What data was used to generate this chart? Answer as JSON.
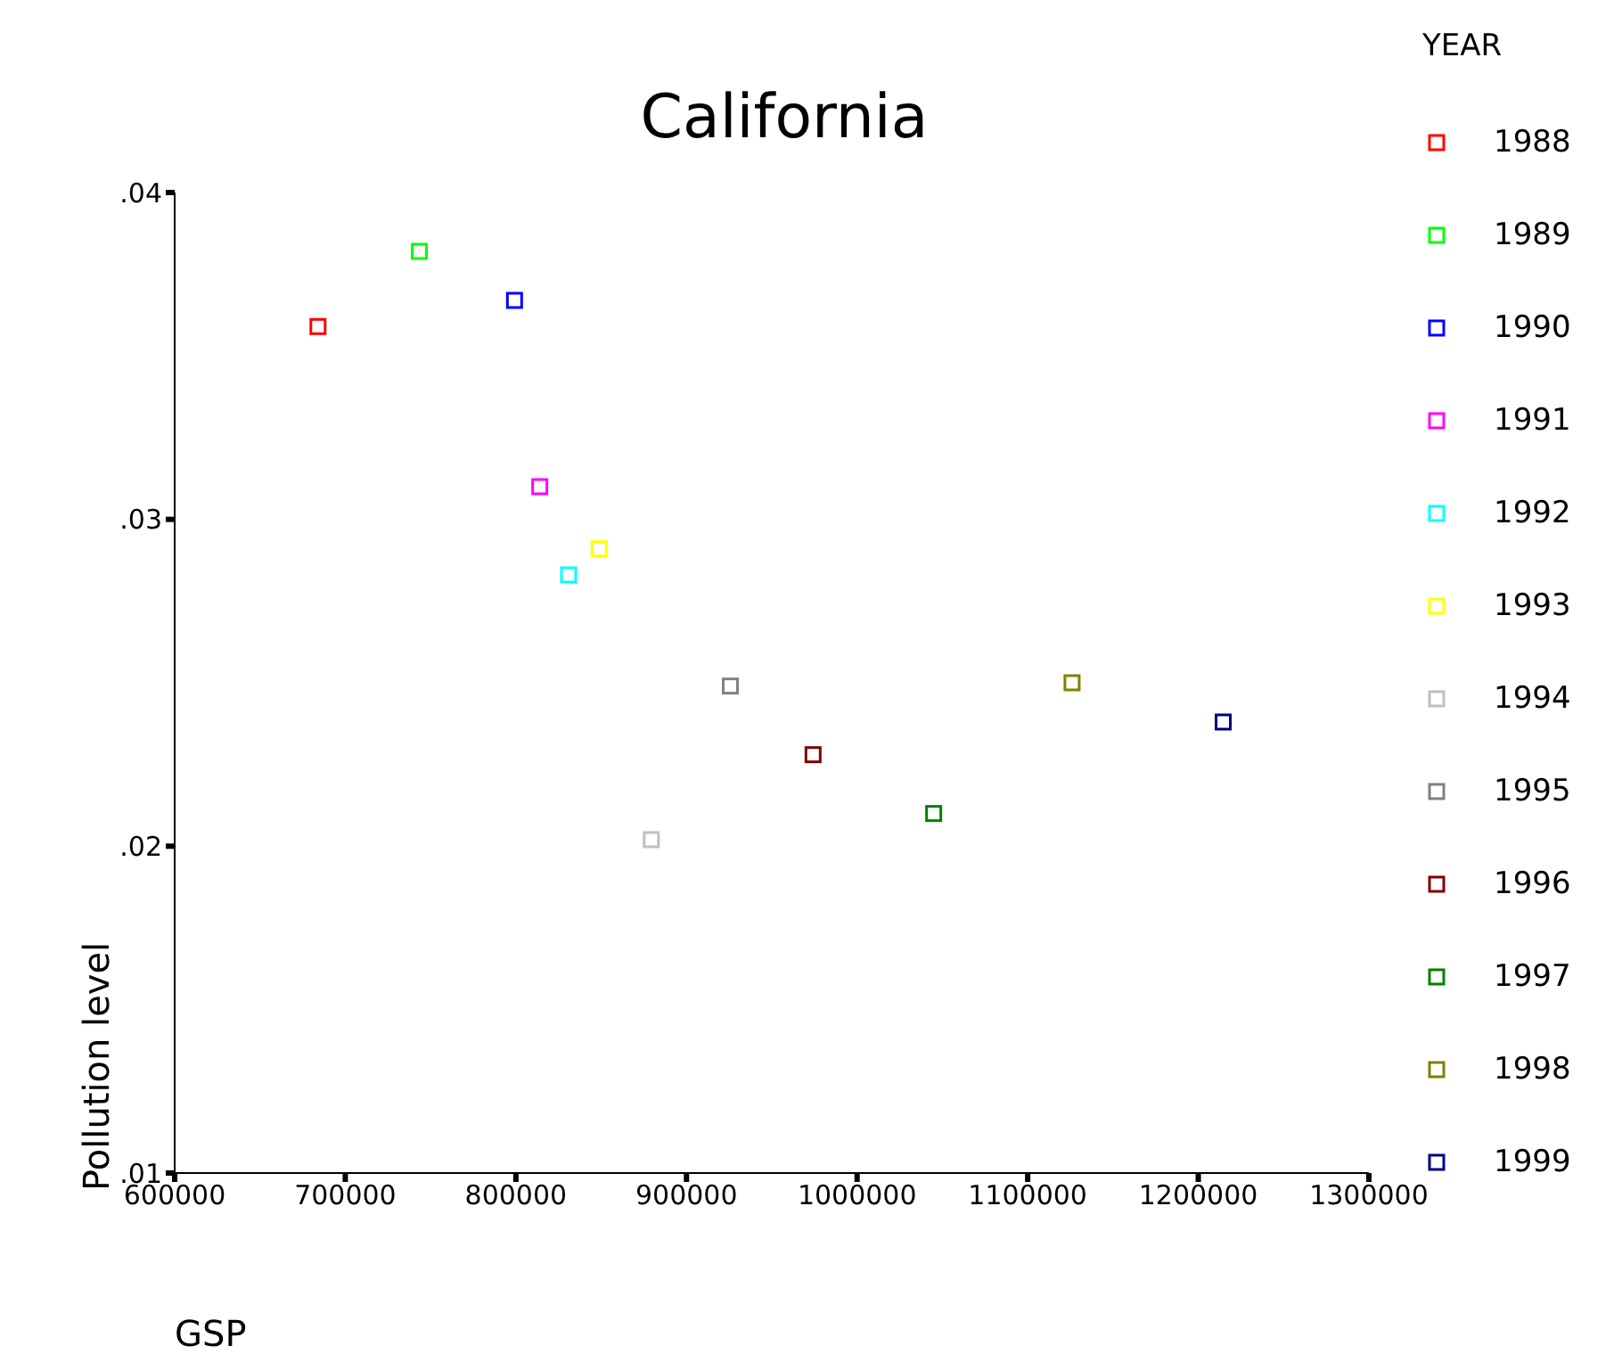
{
  "chart_data": {
    "type": "scatter",
    "title": "California",
    "xlabel": "GSP",
    "ylabel": "Pollution level",
    "legend_title": "YEAR",
    "legend": "right",
    "marker": "square",
    "grid": false,
    "xlim": [
      600000,
      1300000
    ],
    "xticks": [
      600000,
      700000,
      800000,
      900000,
      1000000,
      1100000,
      1200000,
      1300000
    ],
    "ylim": [
      0.01,
      0.04
    ],
    "yticks": [
      {
        "value": 0.01,
        "label": ".01"
      },
      {
        "value": 0.02,
        "label": ".02"
      },
      {
        "value": 0.03,
        "label": ".03"
      },
      {
        "value": 0.04,
        "label": ".04"
      }
    ],
    "series": [
      {
        "name": "1999",
        "color": "#000080",
        "x": [
          1214600
        ],
        "values": [
          0.0238
        ]
      },
      {
        "name": "1998",
        "color": "#808000",
        "x": [
          1126000
        ],
        "values": [
          0.025
        ]
      },
      {
        "name": "1997",
        "color": "#008000",
        "x": [
          1044900
        ],
        "values": [
          0.021
        ]
      },
      {
        "name": "1996",
        "color": "#800000",
        "x": [
          974200
        ],
        "values": [
          0.0228
        ]
      },
      {
        "name": "1995",
        "color": "#808080",
        "x": [
          925700
        ],
        "values": [
          0.0249
        ]
      },
      {
        "name": "1994",
        "color": "#c0c0c0",
        "x": [
          879400
        ],
        "values": [
          0.0202
        ]
      },
      {
        "name": "1993",
        "color": "#ffff00",
        "x": [
          848800
        ],
        "values": [
          0.0291
        ]
      },
      {
        "name": "1992",
        "color": "#00ffff",
        "x": [
          830900
        ],
        "values": [
          0.0283
        ]
      },
      {
        "name": "1991",
        "color": "#ff00ff",
        "x": [
          814000
        ],
        "values": [
          0.031
        ]
      },
      {
        "name": "1990",
        "color": "#0000ff",
        "x": [
          799200
        ],
        "values": [
          0.0367
        ]
      },
      {
        "name": "1989",
        "color": "#00ff00",
        "x": [
          743400
        ],
        "values": [
          0.0382
        ]
      },
      {
        "name": "1988",
        "color": "#ff0000",
        "x": [
          684000
        ],
        "values": [
          0.0359
        ]
      }
    ]
  }
}
